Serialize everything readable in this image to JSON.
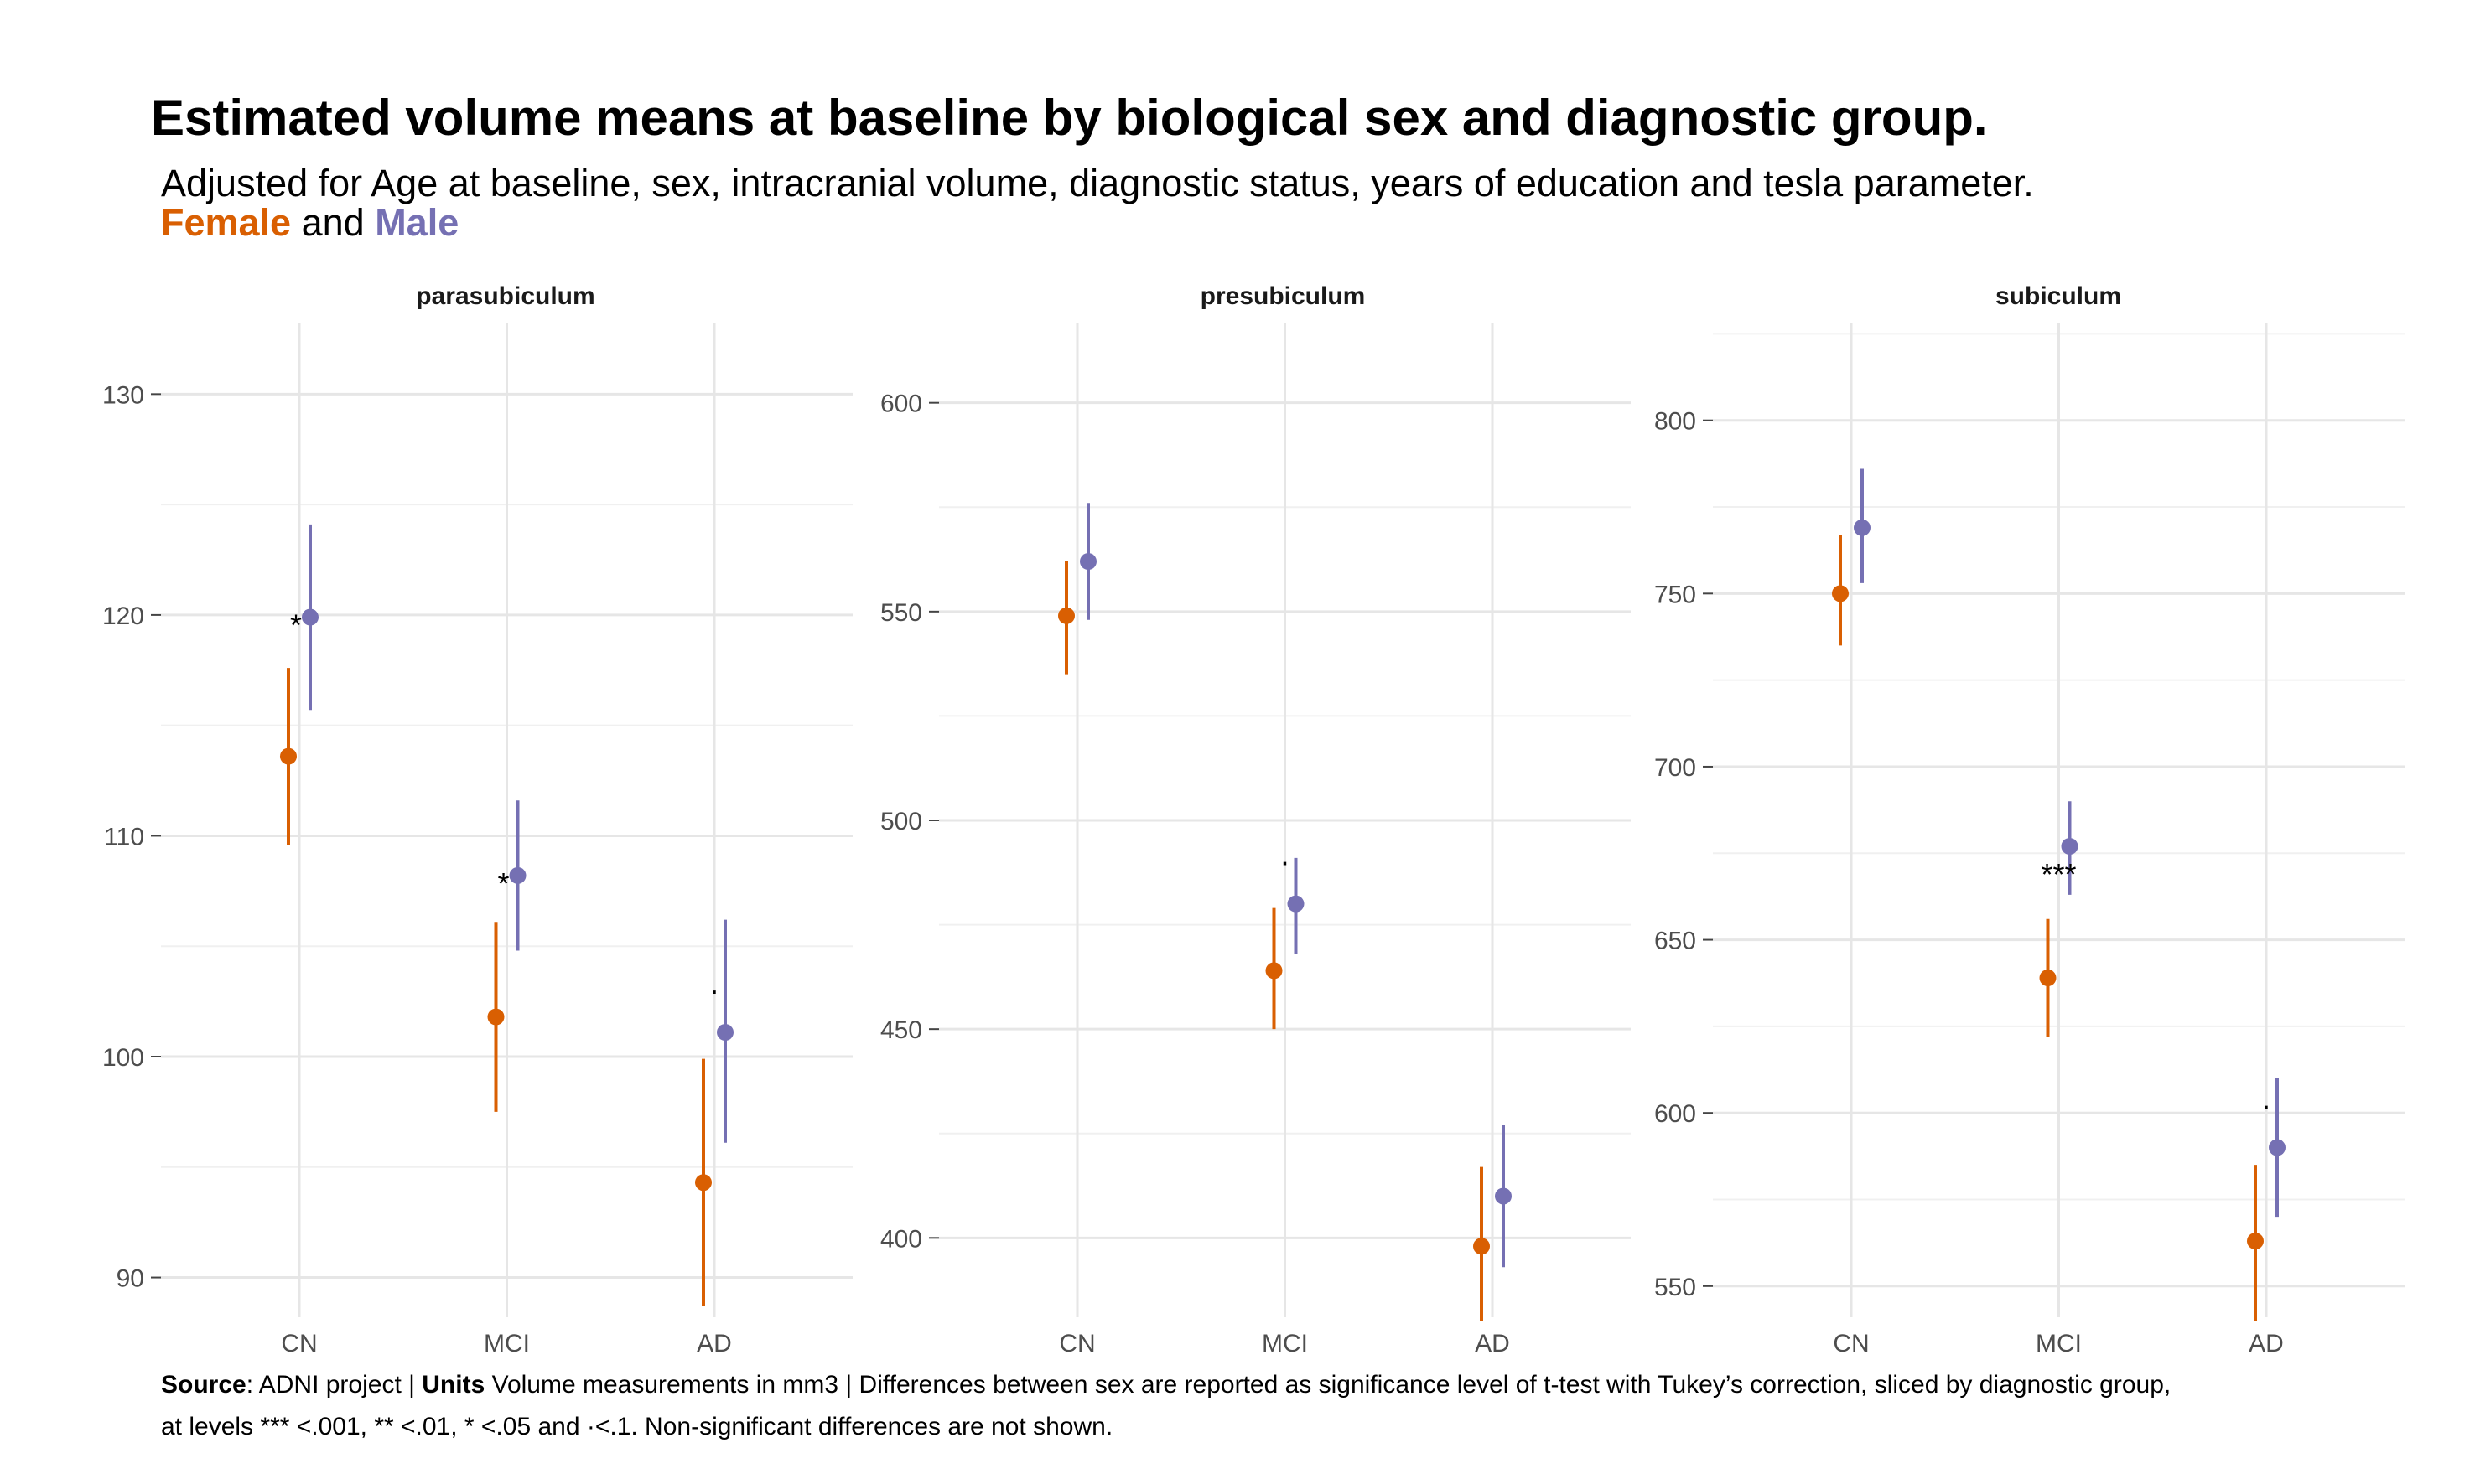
{
  "title": "Estimated volume means at baseline by biological sex and diagnostic group.",
  "subtitle": "Adjusted for Age at baseline, sex, intracranial volume, diagnostic status, years of education and tesla parameter.",
  "legend": {
    "female_label": "Female",
    "connector": " and ",
    "male_label": "Male",
    "female_color": "#D95F02",
    "male_color": "#7570B3"
  },
  "caption": {
    "source_label": "Source",
    "source_text": ": ADNI project | ",
    "units_label": "Units",
    "units_text": " Volume measurements in mm3 | Differences between sex are reported as significance level of t-test with Tukey’s correction, sliced by diagnostic group,",
    "line2": "at levels *** <.001, ** <.01, * <.05 and ·<.1. Non-significant differences are not shown."
  },
  "chart_data": [
    {
      "type": "scatter",
      "title": "parasubiculum",
      "categories": [
        "CN",
        "MCI",
        "AD"
      ],
      "ylim": [
        88.2,
        133.2
      ],
      "yticks": [
        90,
        100,
        110,
        120,
        130
      ],
      "series": [
        {
          "name": "Female",
          "color": "#D95F02",
          "values": [
            113.6,
            101.8,
            94.3
          ],
          "lower": [
            109.6,
            97.5,
            88.7
          ],
          "upper": [
            117.6,
            106.1,
            99.9
          ]
        },
        {
          "name": "Male",
          "color": "#7570B3",
          "values": [
            119.9,
            108.2,
            101.1
          ],
          "lower": [
            115.7,
            104.8,
            96.1
          ],
          "upper": [
            124.1,
            111.6,
            106.2
          ]
        }
      ],
      "significance": [
        "*",
        "*",
        "·"
      ]
    },
    {
      "type": "scatter",
      "title": "presubiculum",
      "categories": [
        "CN",
        "MCI",
        "AD"
      ],
      "ylim": [
        381,
        619
      ],
      "yticks": [
        400,
        450,
        500,
        550,
        600
      ],
      "series": [
        {
          "name": "Female",
          "color": "#D95F02",
          "values": [
            549,
            464,
            398
          ],
          "lower": [
            535,
            450,
            380
          ],
          "upper": [
            562,
            479,
            417
          ]
        },
        {
          "name": "Male",
          "color": "#7570B3",
          "values": [
            562,
            480,
            410
          ],
          "lower": [
            548,
            468,
            393
          ],
          "upper": [
            576,
            491,
            427
          ]
        }
      ],
      "significance": [
        "",
        "·",
        ""
      ]
    },
    {
      "type": "scatter",
      "title": "subiculum",
      "categories": [
        "CN",
        "MCI",
        "AD"
      ],
      "ylim": [
        541,
        828
      ],
      "yticks": [
        550,
        600,
        650,
        700,
        750,
        800
      ],
      "series": [
        {
          "name": "Female",
          "color": "#D95F02",
          "values": [
            750,
            639,
            563
          ],
          "lower": [
            735,
            622,
            540
          ],
          "upper": [
            767,
            656,
            585
          ]
        },
        {
          "name": "Male",
          "color": "#7570B3",
          "values": [
            769,
            677,
            590
          ],
          "lower": [
            753,
            663,
            570
          ],
          "upper": [
            786,
            690,
            610
          ]
        }
      ],
      "significance": [
        "",
        "***",
        "·"
      ]
    }
  ]
}
